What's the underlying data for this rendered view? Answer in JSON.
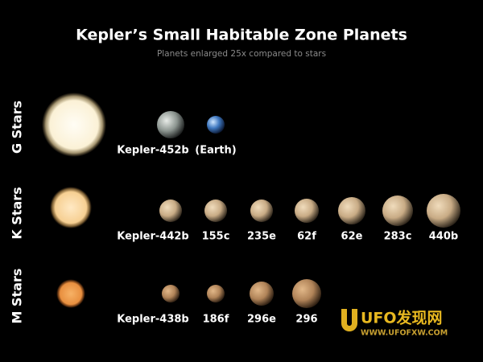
{
  "header": {
    "title": "Kepler’s Small Habitable Zone Planets",
    "subtitle": "Planets enlarged 25x compared to stars"
  },
  "rows": [
    {
      "label": "G Stars",
      "planets": [
        {
          "name": "Kepler-452b"
        },
        {
          "name": "(Earth)"
        }
      ]
    },
    {
      "label": "K Stars",
      "planets": [
        {
          "name": "Kepler-442b"
        },
        {
          "name": "155c"
        },
        {
          "name": "235e"
        },
        {
          "name": "62f"
        },
        {
          "name": "62e"
        },
        {
          "name": "283c"
        },
        {
          "name": "440b"
        }
      ]
    },
    {
      "label": "M Stars",
      "planets": [
        {
          "name": "Kepler-438b"
        },
        {
          "name": "186f"
        },
        {
          "name": "296e"
        },
        {
          "name": "296"
        }
      ]
    }
  ],
  "watermark": {
    "brand": "UFO发现网",
    "url": "WWW.UFOFXW.COM"
  }
}
